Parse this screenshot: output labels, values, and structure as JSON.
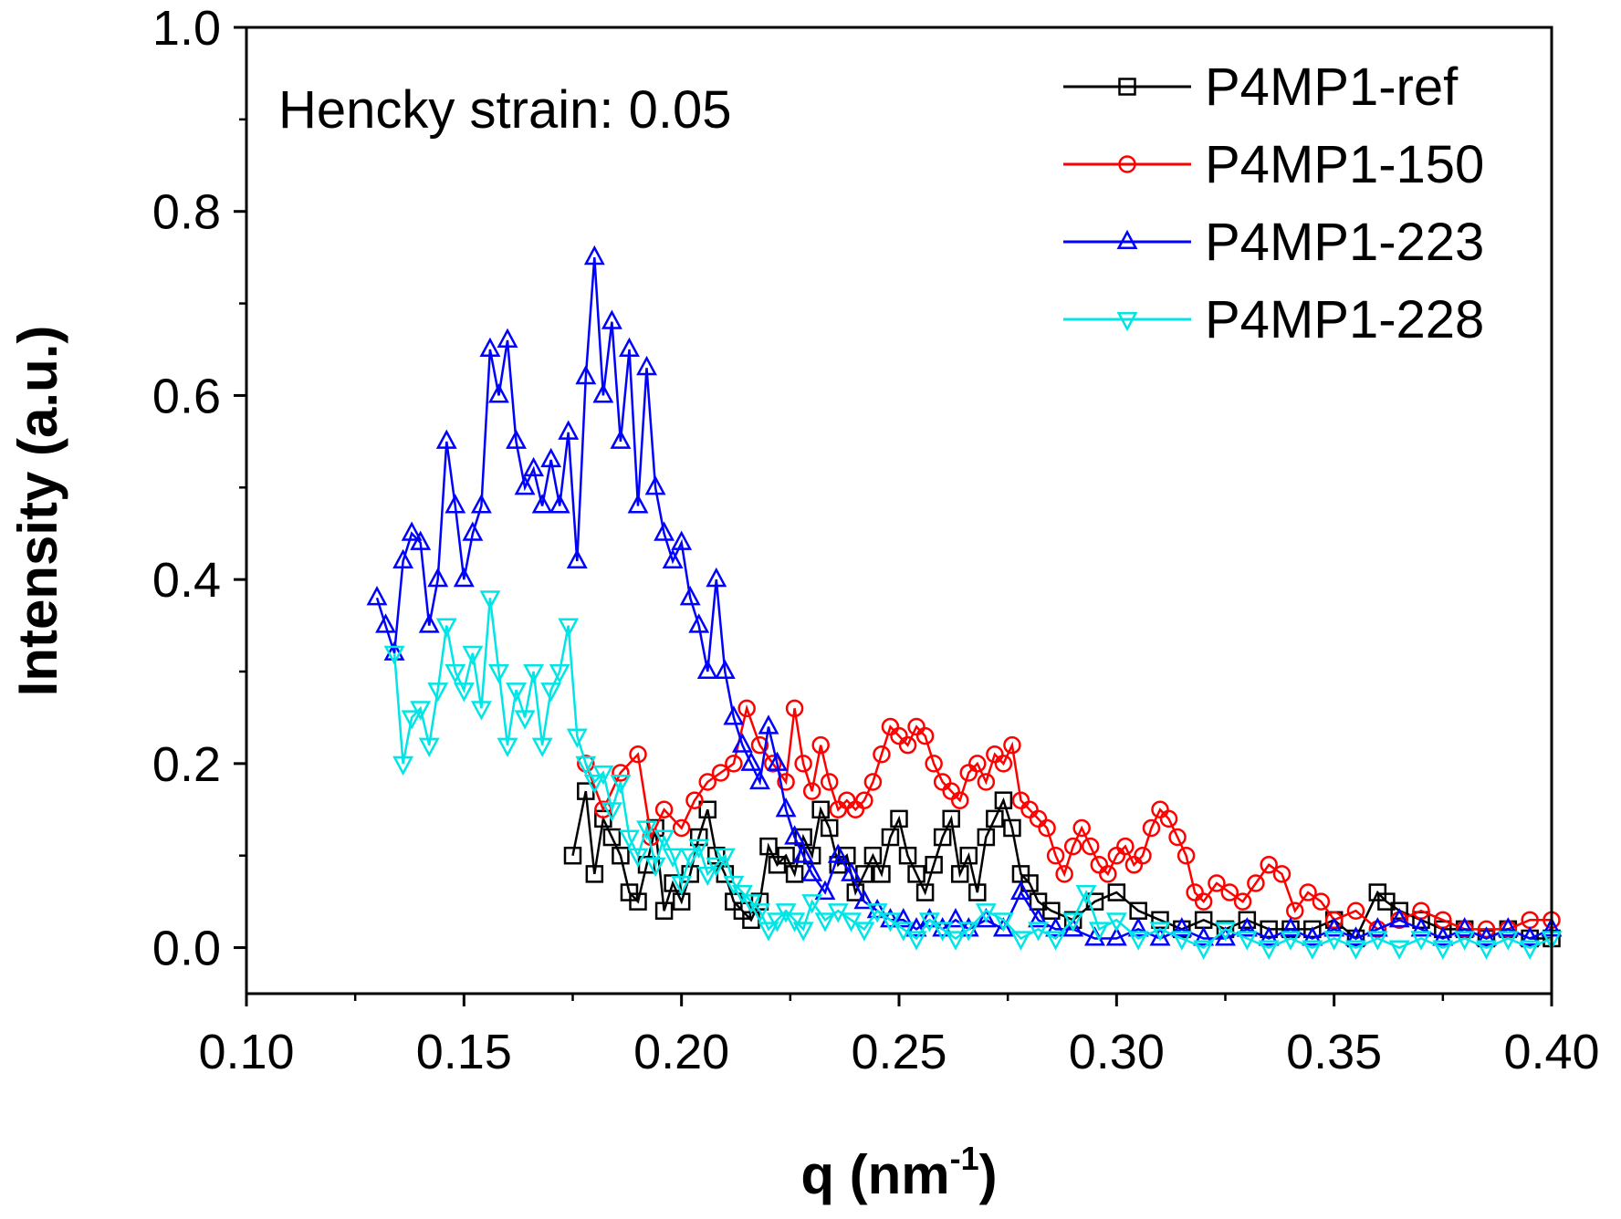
{
  "chart_data": {
    "type": "line",
    "annotation": "Hencky strain: 0.05",
    "xlabel": "q (nm",
    "xlabel_sup": "-1",
    "xlabel_suffix": ")",
    "ylabel": "Intensity (a.u.)",
    "xlim": [
      0.1,
      0.4
    ],
    "ylim": [
      -0.05,
      1.0
    ],
    "x_ticks": [
      0.1,
      0.15,
      0.2,
      0.25,
      0.3,
      0.35,
      0.4
    ],
    "x_tick_labels": [
      "0.10",
      "0.15",
      "0.20",
      "0.25",
      "0.30",
      "0.35",
      "0.40"
    ],
    "y_ticks": [
      0.0,
      0.2,
      0.4,
      0.6,
      0.8,
      1.0
    ],
    "y_tick_labels": [
      "0.0",
      "0.2",
      "0.4",
      "0.6",
      "0.8",
      "1.0"
    ],
    "legend_position": "top-right",
    "grid": false,
    "series": [
      {
        "name": "P4MP1-ref",
        "color": "#000000",
        "marker": "square",
        "x": [
          0.175,
          0.178,
          0.18,
          0.182,
          0.184,
          0.186,
          0.188,
          0.19,
          0.192,
          0.194,
          0.196,
          0.198,
          0.2,
          0.202,
          0.204,
          0.206,
          0.208,
          0.21,
          0.212,
          0.214,
          0.216,
          0.218,
          0.22,
          0.222,
          0.224,
          0.226,
          0.228,
          0.23,
          0.232,
          0.234,
          0.236,
          0.238,
          0.24,
          0.242,
          0.244,
          0.246,
          0.248,
          0.25,
          0.252,
          0.254,
          0.256,
          0.258,
          0.26,
          0.262,
          0.264,
          0.266,
          0.268,
          0.27,
          0.272,
          0.274,
          0.276,
          0.278,
          0.28,
          0.282,
          0.285,
          0.29,
          0.295,
          0.3,
          0.305,
          0.31,
          0.315,
          0.32,
          0.325,
          0.33,
          0.335,
          0.34,
          0.345,
          0.35,
          0.355,
          0.36,
          0.362,
          0.365,
          0.37,
          0.375,
          0.38,
          0.385,
          0.39,
          0.395,
          0.4
        ],
        "y": [
          0.1,
          0.17,
          0.08,
          0.14,
          0.12,
          0.1,
          0.06,
          0.05,
          0.09,
          0.13,
          0.04,
          0.07,
          0.05,
          0.08,
          0.12,
          0.15,
          0.1,
          0.08,
          0.05,
          0.04,
          0.03,
          0.05,
          0.11,
          0.09,
          0.1,
          0.08,
          0.12,
          0.1,
          0.15,
          0.13,
          0.09,
          0.1,
          0.06,
          0.08,
          0.1,
          0.08,
          0.12,
          0.14,
          0.1,
          0.08,
          0.06,
          0.09,
          0.12,
          0.14,
          0.08,
          0.1,
          0.06,
          0.12,
          0.14,
          0.16,
          0.13,
          0.08,
          0.07,
          0.05,
          0.04,
          0.03,
          0.05,
          0.06,
          0.04,
          0.03,
          0.02,
          0.03,
          0.02,
          0.03,
          0.02,
          0.02,
          0.02,
          0.03,
          0.01,
          0.06,
          0.05,
          0.04,
          0.03,
          0.02,
          0.02,
          0.01,
          0.02,
          0.01,
          0.01
        ]
      },
      {
        "name": "P4MP1-150",
        "color": "#ff0000",
        "marker": "circle",
        "x": [
          0.178,
          0.182,
          0.186,
          0.19,
          0.193,
          0.196,
          0.2,
          0.203,
          0.206,
          0.209,
          0.212,
          0.215,
          0.218,
          0.221,
          0.224,
          0.226,
          0.228,
          0.23,
          0.232,
          0.234,
          0.236,
          0.238,
          0.24,
          0.242,
          0.244,
          0.246,
          0.248,
          0.25,
          0.252,
          0.254,
          0.256,
          0.258,
          0.26,
          0.262,
          0.264,
          0.266,
          0.268,
          0.27,
          0.272,
          0.274,
          0.276,
          0.278,
          0.28,
          0.282,
          0.284,
          0.286,
          0.288,
          0.29,
          0.292,
          0.294,
          0.296,
          0.298,
          0.3,
          0.302,
          0.304,
          0.306,
          0.308,
          0.31,
          0.312,
          0.314,
          0.316,
          0.318,
          0.32,
          0.323,
          0.326,
          0.329,
          0.332,
          0.335,
          0.338,
          0.341,
          0.344,
          0.347,
          0.35,
          0.355,
          0.36,
          0.365,
          0.37,
          0.375,
          0.38,
          0.385,
          0.39,
          0.395,
          0.4
        ],
        "y": [
          0.2,
          0.15,
          0.19,
          0.21,
          0.12,
          0.15,
          0.13,
          0.16,
          0.18,
          0.19,
          0.2,
          0.26,
          0.22,
          0.2,
          0.18,
          0.26,
          0.2,
          0.17,
          0.22,
          0.18,
          0.15,
          0.16,
          0.15,
          0.16,
          0.18,
          0.21,
          0.24,
          0.23,
          0.22,
          0.24,
          0.23,
          0.2,
          0.18,
          0.17,
          0.16,
          0.19,
          0.2,
          0.18,
          0.21,
          0.2,
          0.22,
          0.16,
          0.15,
          0.14,
          0.13,
          0.1,
          0.08,
          0.11,
          0.13,
          0.11,
          0.09,
          0.08,
          0.1,
          0.11,
          0.09,
          0.1,
          0.13,
          0.15,
          0.14,
          0.12,
          0.1,
          0.06,
          0.05,
          0.07,
          0.06,
          0.05,
          0.07,
          0.09,
          0.08,
          0.04,
          0.06,
          0.05,
          0.03,
          0.04,
          0.02,
          0.03,
          0.04,
          0.03,
          0.02,
          0.02,
          0.02,
          0.03,
          0.03
        ]
      },
      {
        "name": "P4MP1-223",
        "color": "#0000ff",
        "marker": "triangle-up",
        "x": [
          0.13,
          0.132,
          0.134,
          0.136,
          0.138,
          0.14,
          0.142,
          0.144,
          0.146,
          0.148,
          0.15,
          0.152,
          0.154,
          0.156,
          0.158,
          0.16,
          0.162,
          0.164,
          0.166,
          0.168,
          0.17,
          0.172,
          0.174,
          0.176,
          0.178,
          0.18,
          0.182,
          0.184,
          0.186,
          0.188,
          0.19,
          0.192,
          0.194,
          0.196,
          0.198,
          0.2,
          0.202,
          0.204,
          0.206,
          0.208,
          0.21,
          0.212,
          0.214,
          0.216,
          0.218,
          0.22,
          0.222,
          0.224,
          0.226,
          0.228,
          0.23,
          0.233,
          0.236,
          0.239,
          0.242,
          0.245,
          0.248,
          0.251,
          0.254,
          0.257,
          0.26,
          0.263,
          0.266,
          0.27,
          0.274,
          0.278,
          0.282,
          0.286,
          0.29,
          0.295,
          0.3,
          0.305,
          0.31,
          0.315,
          0.32,
          0.325,
          0.33,
          0.335,
          0.34,
          0.345,
          0.35,
          0.355,
          0.36,
          0.365,
          0.37,
          0.375,
          0.38,
          0.385,
          0.39,
          0.395,
          0.4
        ],
        "y": [
          0.38,
          0.35,
          0.32,
          0.42,
          0.45,
          0.44,
          0.35,
          0.4,
          0.55,
          0.48,
          0.4,
          0.45,
          0.48,
          0.65,
          0.6,
          0.66,
          0.55,
          0.5,
          0.52,
          0.48,
          0.53,
          0.48,
          0.56,
          0.42,
          0.62,
          0.75,
          0.6,
          0.68,
          0.55,
          0.65,
          0.48,
          0.63,
          0.5,
          0.45,
          0.42,
          0.44,
          0.38,
          0.35,
          0.3,
          0.4,
          0.3,
          0.25,
          0.22,
          0.2,
          0.18,
          0.24,
          0.2,
          0.15,
          0.12,
          0.1,
          0.08,
          0.06,
          0.1,
          0.08,
          0.05,
          0.04,
          0.03,
          0.03,
          0.02,
          0.03,
          0.02,
          0.03,
          0.02,
          0.03,
          0.02,
          0.06,
          0.03,
          0.02,
          0.02,
          0.01,
          0.01,
          0.02,
          0.01,
          0.02,
          0.01,
          0.01,
          0.02,
          0.01,
          0.02,
          0.01,
          0.02,
          0.01,
          0.02,
          0.03,
          0.02,
          0.01,
          0.02,
          0.01,
          0.02,
          0.01,
          0.02
        ]
      },
      {
        "name": "P4MP1-228",
        "color": "#00e5e5",
        "marker": "triangle-down",
        "x": [
          0.134,
          0.136,
          0.138,
          0.14,
          0.142,
          0.144,
          0.146,
          0.148,
          0.15,
          0.152,
          0.154,
          0.156,
          0.158,
          0.16,
          0.162,
          0.164,
          0.166,
          0.168,
          0.17,
          0.172,
          0.174,
          0.176,
          0.178,
          0.18,
          0.182,
          0.184,
          0.186,
          0.188,
          0.19,
          0.192,
          0.194,
          0.196,
          0.198,
          0.2,
          0.202,
          0.204,
          0.206,
          0.208,
          0.21,
          0.212,
          0.214,
          0.216,
          0.218,
          0.22,
          0.222,
          0.224,
          0.226,
          0.228,
          0.23,
          0.233,
          0.236,
          0.239,
          0.242,
          0.245,
          0.248,
          0.251,
          0.254,
          0.257,
          0.26,
          0.263,
          0.266,
          0.27,
          0.274,
          0.278,
          0.282,
          0.286,
          0.29,
          0.293,
          0.296,
          0.3,
          0.305,
          0.31,
          0.315,
          0.32,
          0.325,
          0.33,
          0.335,
          0.34,
          0.345,
          0.35,
          0.355,
          0.36,
          0.365,
          0.37,
          0.375,
          0.38,
          0.385,
          0.39,
          0.395,
          0.4
        ],
        "y": [
          0.32,
          0.2,
          0.25,
          0.26,
          0.22,
          0.28,
          0.35,
          0.3,
          0.28,
          0.32,
          0.26,
          0.38,
          0.3,
          0.22,
          0.28,
          0.25,
          0.3,
          0.22,
          0.28,
          0.3,
          0.35,
          0.23,
          0.2,
          0.18,
          0.19,
          0.15,
          0.18,
          0.12,
          0.1,
          0.13,
          0.09,
          0.12,
          0.1,
          0.07,
          0.1,
          0.11,
          0.08,
          0.09,
          0.1,
          0.07,
          0.06,
          0.05,
          0.04,
          0.02,
          0.03,
          0.04,
          0.03,
          0.02,
          0.05,
          0.03,
          0.04,
          0.03,
          0.02,
          0.04,
          0.03,
          0.02,
          0.01,
          0.03,
          0.02,
          0.01,
          0.02,
          0.04,
          0.03,
          0.01,
          0.02,
          0.01,
          0.03,
          0.06,
          0.02,
          0.03,
          0.01,
          0.02,
          0.01,
          0.0,
          0.02,
          0.01,
          0.0,
          0.01,
          0.0,
          0.01,
          0.0,
          0.01,
          0.0,
          0.01,
          0.0,
          0.01,
          0.0,
          0.01,
          0.0,
          0.01
        ]
      }
    ]
  }
}
